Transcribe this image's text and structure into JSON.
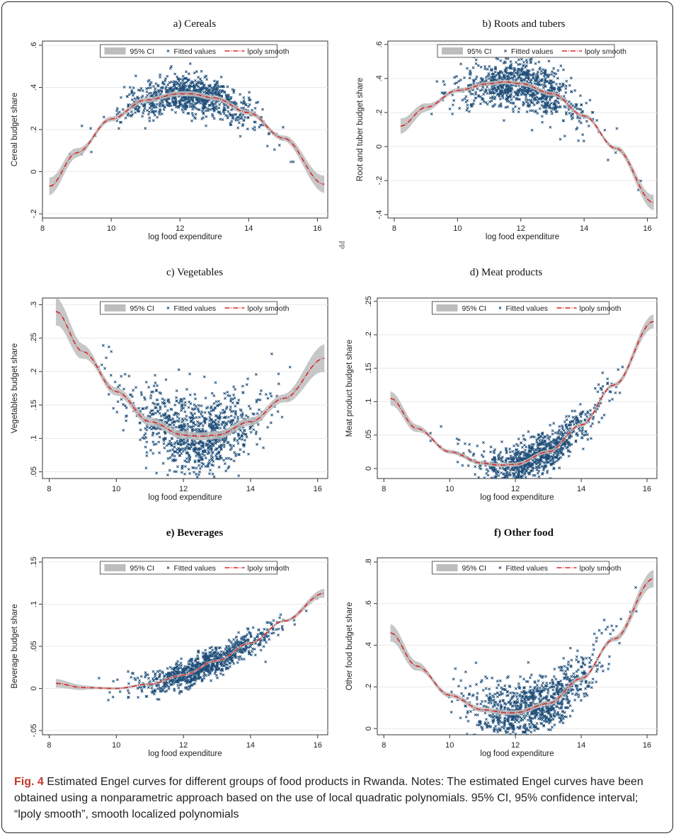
{
  "legend": {
    "ci": "95% CI",
    "fitted": "Fitted values",
    "smooth": "lpoly smooth"
  },
  "colors": {
    "points": "#1f4e79",
    "smooth": "#d62728",
    "ci": "#bdbdbd",
    "grid": "#e8e8e8"
  },
  "caption": {
    "label": "Fig. 4",
    "text": "Estimated Engel curves for different groups of food products in Rwanda. Notes: The estimated Engel curves have been obtained using a nonparametric approach based on the use of local quadratic polynomials. 95% CI, 95% confidence interval; “lpoly smooth”, smooth localized polynomials"
  },
  "stray_mark": "pp",
  "chart_data": [
    {
      "type": "scatter",
      "title": "a)    Cereals",
      "xlabel": "log food expenditure",
      "ylabel": "Cereal budget share",
      "xlim": [
        8,
        16.3
      ],
      "ylim": [
        -0.22,
        0.62
      ],
      "x_ticks": [
        8,
        10,
        12,
        14,
        16
      ],
      "y_ticks": [
        -0.2,
        0,
        0.2,
        0.4,
        0.6
      ],
      "y_tick_labels": [
        "-.2",
        "0",
        ".2",
        ".4",
        ".6"
      ],
      "grid": true,
      "legend_position": "top-center",
      "smooth": {
        "x": [
          8.2,
          9,
          10,
          11,
          12,
          12.3,
          13,
          14,
          15,
          16.2
        ],
        "y": [
          -0.07,
          0.09,
          0.25,
          0.34,
          0.37,
          0.37,
          0.35,
          0.28,
          0.16,
          -0.06
        ]
      },
      "ci_halfwidth": 0.012,
      "cloud": {
        "x_center": 12.3,
        "x_spread": 1.0,
        "scatter_sd": 0.045,
        "n": 900
      }
    },
    {
      "type": "scatter",
      "title": "b) Roots and  tubers",
      "xlabel": "log food expenditure",
      "ylabel": "Root and tuber budget share",
      "xlim": [
        7.8,
        16.3
      ],
      "ylim": [
        -0.42,
        0.62
      ],
      "x_ticks": [
        8,
        10,
        12,
        14,
        16
      ],
      "y_ticks": [
        -0.4,
        -0.2,
        0,
        0.2,
        0.4,
        0.6
      ],
      "y_tick_labels": [
        "-.4",
        "-.2",
        "0",
        ".2",
        ".4",
        ".6"
      ],
      "grid": true,
      "legend_position": "top-center",
      "smooth": {
        "x": [
          8.2,
          9,
          10,
          11,
          11.5,
          12,
          13,
          14,
          15,
          16.2
        ],
        "y": [
          0.12,
          0.23,
          0.33,
          0.37,
          0.38,
          0.37,
          0.31,
          0.18,
          -0.01,
          -0.33
        ]
      },
      "ci_halfwidth": 0.013,
      "cloud": {
        "x_center": 12.0,
        "x_spread": 1.0,
        "scatter_sd": 0.07,
        "n": 900
      }
    },
    {
      "type": "scatter",
      "title": "c)    Vegetables",
      "xlabel": "log food expenditure",
      "ylabel": "Vegetables budget share",
      "xlim": [
        7.8,
        16.3
      ],
      "ylim": [
        0.04,
        0.31
      ],
      "x_ticks": [
        8,
        10,
        12,
        14,
        16
      ],
      "y_ticks": [
        0.05,
        0.1,
        0.15,
        0.2,
        0.25,
        0.3
      ],
      "y_tick_labels": [
        ".05",
        ".1",
        ".15",
        ".2",
        ".25",
        ".3"
      ],
      "grid": true,
      "legend_position": "top-center",
      "smooth": {
        "x": [
          8.2,
          9,
          10,
          11,
          12,
          12.5,
          13,
          14,
          15,
          16.2
        ],
        "y": [
          0.29,
          0.23,
          0.17,
          0.125,
          0.105,
          0.103,
          0.105,
          0.125,
          0.16,
          0.22
        ]
      },
      "ci_halfwidth": 0.006,
      "cloud": {
        "x_center": 12.4,
        "x_spread": 1.0,
        "scatter_sd": 0.028,
        "n": 1000
      }
    },
    {
      "type": "scatter",
      "title": "d)  Meat products",
      "xlabel": "log food expenditure",
      "ylabel": "Meat product budget share",
      "xlim": [
        7.8,
        16.3
      ],
      "ylim": [
        -0.015,
        0.255
      ],
      "x_ticks": [
        8,
        10,
        12,
        14,
        16
      ],
      "y_ticks": [
        0,
        0.05,
        0.1,
        0.15,
        0.2,
        0.25
      ],
      "y_tick_labels": [
        "0",
        ".05",
        ".1",
        ".15",
        ".2",
        ".25"
      ],
      "grid": true,
      "legend_position": "top-center",
      "smooth": {
        "x": [
          8.2,
          9,
          10,
          11,
          11.5,
          12,
          13,
          14,
          15,
          16.2
        ],
        "y": [
          0.105,
          0.06,
          0.025,
          0.008,
          0.005,
          0.006,
          0.025,
          0.065,
          0.125,
          0.22
        ]
      },
      "ci_halfwidth": 0.003,
      "cloud": {
        "x_center": 12.6,
        "x_spread": 1.0,
        "scatter_sd": 0.015,
        "n": 900
      }
    },
    {
      "type": "scatter",
      "title": "e) Beverages",
      "xlabel": "log food expenditure",
      "ylabel": "Beverage budget share",
      "xlim": [
        7.8,
        16.3
      ],
      "ylim": [
        -0.055,
        0.155
      ],
      "x_ticks": [
        8,
        10,
        12,
        14,
        16
      ],
      "y_ticks": [
        -0.05,
        0,
        0.05,
        0.1,
        0.15
      ],
      "y_tick_labels": [
        "-.05",
        "0",
        ".05",
        ".1",
        ".15"
      ],
      "grid": true,
      "legend_position": "top-center",
      "smooth": {
        "x": [
          8.2,
          9,
          10,
          11,
          12,
          13,
          14,
          15,
          16.2
        ],
        "y": [
          0.006,
          0.001,
          0.0,
          0.005,
          0.016,
          0.033,
          0.054,
          0.08,
          0.113
        ]
      },
      "ci_halfwidth": 0.0015,
      "cloud": {
        "x_center": 12.6,
        "x_spread": 1.0,
        "scatter_sd": 0.008,
        "n": 900
      }
    },
    {
      "type": "scatter",
      "title": "f) Other food",
      "xlabel": "log food expenditure",
      "ylabel": "Other food budget share",
      "xlim": [
        7.8,
        16.3
      ],
      "ylim": [
        -0.03,
        0.82
      ],
      "x_ticks": [
        8,
        10,
        12,
        14,
        16
      ],
      "y_ticks": [
        0,
        0.2,
        0.4,
        0.6,
        0.8
      ],
      "y_tick_labels": [
        "0",
        ".2",
        ".4",
        ".6",
        ".8"
      ],
      "grid": true,
      "legend_position": "top-center",
      "smooth": {
        "x": [
          8.2,
          9,
          10,
          11,
          11.8,
          12,
          13,
          14,
          15,
          16.2
        ],
        "y": [
          0.46,
          0.3,
          0.16,
          0.09,
          0.075,
          0.076,
          0.12,
          0.24,
          0.43,
          0.72
        ]
      },
      "ci_halfwidth": 0.012,
      "cloud": {
        "x_center": 12.5,
        "x_spread": 1.0,
        "scatter_sd": 0.07,
        "n": 1000
      }
    }
  ]
}
